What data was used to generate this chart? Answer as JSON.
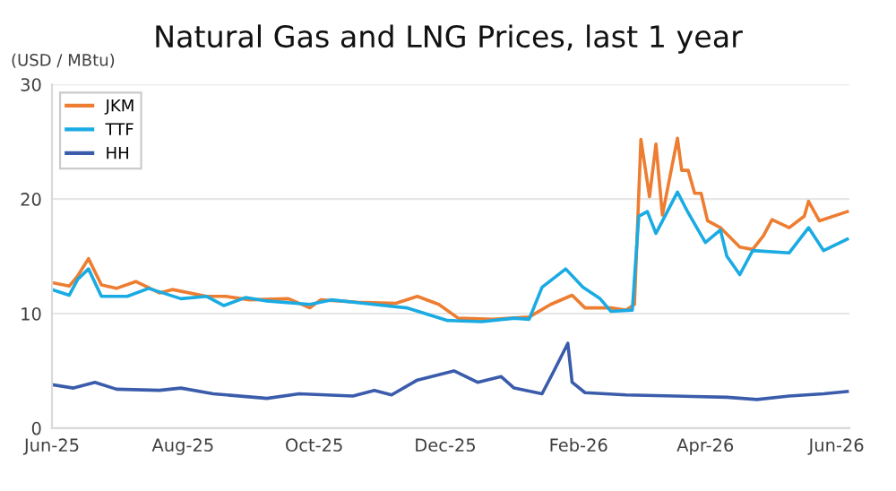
{
  "chart_data": {
    "type": "line",
    "title": "Natural Gas and LNG Prices, last 1 year",
    "ylabel": "(USD / MBtu)",
    "xlim": [
      "2025-06-01",
      "2026-06-07"
    ],
    "xticks": [
      {
        "value": "2025-06-01",
        "label": "Jun-25"
      },
      {
        "value": "2025-08-01",
        "label": "Aug-25"
      },
      {
        "value": "2025-10-01",
        "label": "Oct-25"
      },
      {
        "value": "2025-12-01",
        "label": "Dec-25"
      },
      {
        "value": "2026-02-01",
        "label": "Feb-26"
      },
      {
        "value": "2026-04-01",
        "label": "Apr-26"
      },
      {
        "value": "2026-06-01",
        "label": "Jun-26"
      }
    ],
    "ylim": [
      0,
      30
    ],
    "yticks": [
      0,
      10,
      20,
      30
    ],
    "grid": "y",
    "legend": "top left",
    "marker": "none",
    "line_style": "solid",
    "series": [
      {
        "name": "JKM",
        "color": "#ed7d31",
        "x": [
          "2025-06-01",
          "2025-06-09",
          "2025-06-13",
          "2025-06-18",
          "2025-06-24",
          "2025-07-01",
          "2025-07-10",
          "2025-07-21",
          "2025-07-27",
          "2025-08-12",
          "2025-08-21",
          "2025-09-01",
          "2025-09-19",
          "2025-09-29",
          "2025-10-04",
          "2025-10-21",
          "2025-11-08",
          "2025-11-18",
          "2025-11-28",
          "2025-12-07",
          "2025-12-23",
          "2026-01-09",
          "2026-01-19",
          "2026-01-29",
          "2026-02-04",
          "2026-02-16",
          "2026-02-23",
          "2026-02-27",
          "2026-03-02",
          "2026-03-06",
          "2026-03-09",
          "2026-03-12",
          "2026-03-19",
          "2026-03-21",
          "2026-03-24",
          "2026-03-27",
          "2026-03-30",
          "2026-04-02",
          "2026-04-08",
          "2026-04-17",
          "2026-04-23",
          "2026-04-28",
          "2026-05-02",
          "2026-05-10",
          "2026-05-17",
          "2026-05-19",
          "2026-05-24",
          "2026-06-06"
        ],
        "values": [
          12.7,
          12.4,
          13.3,
          14.8,
          12.5,
          12.2,
          12.8,
          11.8,
          12.1,
          11.5,
          11.5,
          11.2,
          11.3,
          10.5,
          11.2,
          11.0,
          10.9,
          11.5,
          10.8,
          9.6,
          9.5,
          9.7,
          10.8,
          11.6,
          10.5,
          10.5,
          10.3,
          10.8,
          25.2,
          20.2,
          24.8,
          18.6,
          25.3,
          22.5,
          22.5,
          20.5,
          20.5,
          18.1,
          17.5,
          15.8,
          15.6,
          16.8,
          18.2,
          17.5,
          18.5,
          19.8,
          18.1,
          18.9
        ]
      },
      {
        "name": "TTF",
        "color": "#1aabe3",
        "x": [
          "2025-06-01",
          "2025-06-09",
          "2025-06-13",
          "2025-06-18",
          "2025-06-24",
          "2025-07-06",
          "2025-07-16",
          "2025-07-31",
          "2025-08-12",
          "2025-08-20",
          "2025-08-30",
          "2025-09-09",
          "2025-09-29",
          "2025-10-09",
          "2025-10-24",
          "2025-11-13",
          "2025-12-02",
          "2025-12-18",
          "2026-01-02",
          "2026-01-09",
          "2026-01-15",
          "2026-01-26",
          "2026-02-03",
          "2026-02-11",
          "2026-02-16",
          "2026-02-26",
          "2026-03-01",
          "2026-03-05",
          "2026-03-09",
          "2026-03-19",
          "2026-03-24",
          "2026-04-01",
          "2026-04-08",
          "2026-04-11",
          "2026-04-17",
          "2026-04-23",
          "2026-05-10",
          "2026-05-19",
          "2026-05-26",
          "2026-06-06"
        ],
        "values": [
          12.1,
          11.6,
          13.0,
          13.9,
          11.5,
          11.5,
          12.2,
          11.3,
          11.5,
          10.7,
          11.4,
          11.1,
          10.8,
          11.2,
          10.9,
          10.5,
          9.4,
          9.3,
          9.6,
          9.5,
          12.3,
          13.9,
          12.3,
          11.3,
          10.2,
          10.3,
          18.5,
          18.9,
          17.0,
          20.6,
          18.8,
          16.2,
          17.3,
          15.0,
          13.4,
          15.5,
          15.3,
          17.5,
          15.5,
          16.5
        ]
      },
      {
        "name": "HH",
        "color": "#3a5cab",
        "x": [
          "2025-06-01",
          "2025-06-11",
          "2025-06-21",
          "2025-07-01",
          "2025-07-21",
          "2025-07-31",
          "2025-08-15",
          "2025-09-09",
          "2025-09-24",
          "2025-10-19",
          "2025-10-29",
          "2025-11-06",
          "2025-11-18",
          "2025-12-05",
          "2025-12-16",
          "2025-12-27",
          "2026-01-02",
          "2026-01-15",
          "2026-01-20",
          "2026-01-27",
          "2026-01-29",
          "2026-02-04",
          "2026-02-23",
          "2026-04-11",
          "2026-04-25",
          "2026-05-10",
          "2026-05-26",
          "2026-06-06"
        ],
        "values": [
          3.8,
          3.5,
          4.0,
          3.4,
          3.3,
          3.5,
          3.0,
          2.6,
          3.0,
          2.8,
          3.3,
          2.9,
          4.2,
          5.0,
          4.0,
          4.5,
          3.5,
          3.0,
          4.8,
          7.4,
          4.0,
          3.1,
          2.9,
          2.7,
          2.5,
          2.8,
          3.0,
          3.2
        ]
      }
    ]
  }
}
